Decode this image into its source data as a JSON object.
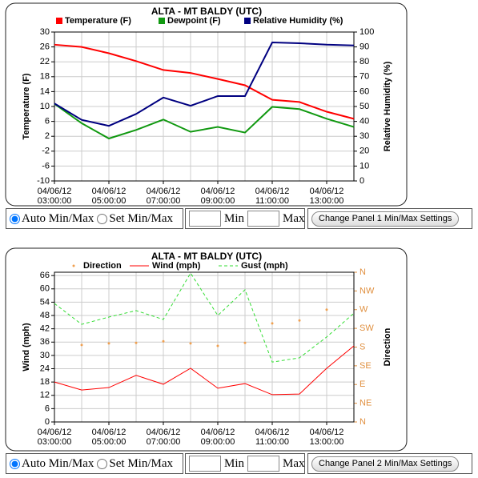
{
  "chart_data": [
    {
      "type": "line",
      "title": "ALTA - MT BALDY  (UTC)",
      "categories": [
        "04/06/12 03:00:00",
        null,
        "04/06/12 05:00:00",
        null,
        "04/06/12 07:00:00",
        null,
        "04/06/12 09:00:00",
        null,
        "04/06/12 11:00:00",
        null,
        "04/06/12 13:00:00",
        null
      ],
      "ylabel": "Temperature (F)",
      "y2label": "Relative Humidity (%)",
      "ylim": [
        -10,
        30
      ],
      "yticks": [
        -10,
        -6,
        -2,
        2,
        6,
        10,
        14,
        18,
        22,
        26,
        30
      ],
      "y2lim": [
        0,
        100
      ],
      "y2ticks": [
        0,
        10,
        20,
        30,
        40,
        50,
        60,
        70,
        80,
        90,
        100
      ],
      "grid": true,
      "legend": "top",
      "series": [
        {
          "name": "Temperature (F)",
          "color": "#ff0000",
          "style": "solid",
          "values": [
            26.6,
            26,
            24.3,
            22.2,
            19.8,
            19,
            17.4,
            15.7,
            11.8,
            11.2,
            8.6,
            6.7
          ]
        },
        {
          "name": "Dewpoint (F)",
          "color": "#119911",
          "style": "solid",
          "values": [
            10.7,
            5.5,
            1.4,
            3.7,
            6.5,
            3.2,
            4.5,
            3,
            9.9,
            9.3,
            6.7,
            4.5
          ]
        },
        {
          "name": "Relative Humidity (%)",
          "color": "#000080",
          "style": "solid",
          "axis": "y2",
          "values": [
            52,
            41,
            37,
            45,
            56,
            50.5,
            57,
            57,
            93,
            92.5,
            91.5,
            91
          ]
        }
      ]
    },
    {
      "type": "line",
      "title": "ALTA - MT BALDY  (UTC)",
      "categories": [
        "04/06/12 03:00:00",
        null,
        "04/06/12 05:00:00",
        null,
        "04/06/12 07:00:00",
        null,
        "04/06/12 09:00:00",
        null,
        "04/06/12 11:00:00",
        null,
        "04/06/12 13:00:00",
        null
      ],
      "ylabel": "Wind (mph)",
      "y2label": "Direction",
      "ylim": [
        0,
        67.5
      ],
      "yticks": [
        0,
        6,
        12,
        18,
        24,
        30,
        36,
        42,
        48,
        54,
        60,
        66
      ],
      "y2lim": [
        0,
        360
      ],
      "y2tick_color": "#e09040",
      "y2ticks": [
        {
          "value": 0,
          "label": "N"
        },
        {
          "value": 45,
          "label": "NE"
        },
        {
          "value": 90,
          "label": "E"
        },
        {
          "value": 135,
          "label": "SE"
        },
        {
          "value": 180,
          "label": "S"
        },
        {
          "value": 225,
          "label": "SW"
        },
        {
          "value": 270,
          "label": "W"
        },
        {
          "value": 315,
          "label": "NW"
        },
        {
          "value": 360,
          "label": "N"
        }
      ],
      "grid": true,
      "legend": "top",
      "series": [
        {
          "name": "Direction",
          "color": "#f0a050",
          "style": "dots",
          "axis": "y2",
          "values": [
            null,
            185,
            189,
            190,
            194,
            189,
            183,
            190,
            237,
            244,
            270,
            null
          ]
        },
        {
          "name": "Wind (mph)",
          "color": "#ff0000",
          "style": "solid",
          "values": [
            18,
            14.4,
            15.5,
            21,
            17,
            24.2,
            15.2,
            17.3,
            12.3,
            12.6,
            24.2,
            34.3
          ]
        },
        {
          "name": "Gust (mph)",
          "color": "#33dd33",
          "style": "dashed",
          "values": [
            53.4,
            44,
            47.3,
            50.2,
            46.2,
            67.1,
            48,
            59.6,
            27,
            28.9,
            38.3,
            49
          ]
        }
      ]
    }
  ],
  "controls": [
    {
      "auto_label": "Auto Min/Max",
      "auto_checked": true,
      "set_label": "Set Min/Max",
      "min_label": "Min",
      "max_label": "Max",
      "button": "Change Panel 1 Min/Max Settings"
    },
    {
      "auto_label": "Auto Min/Max",
      "auto_checked": true,
      "set_label": "Set Min/Max",
      "min_label": "Min",
      "max_label": "Max",
      "button": "Change Panel 2 Min/Max Settings"
    }
  ]
}
